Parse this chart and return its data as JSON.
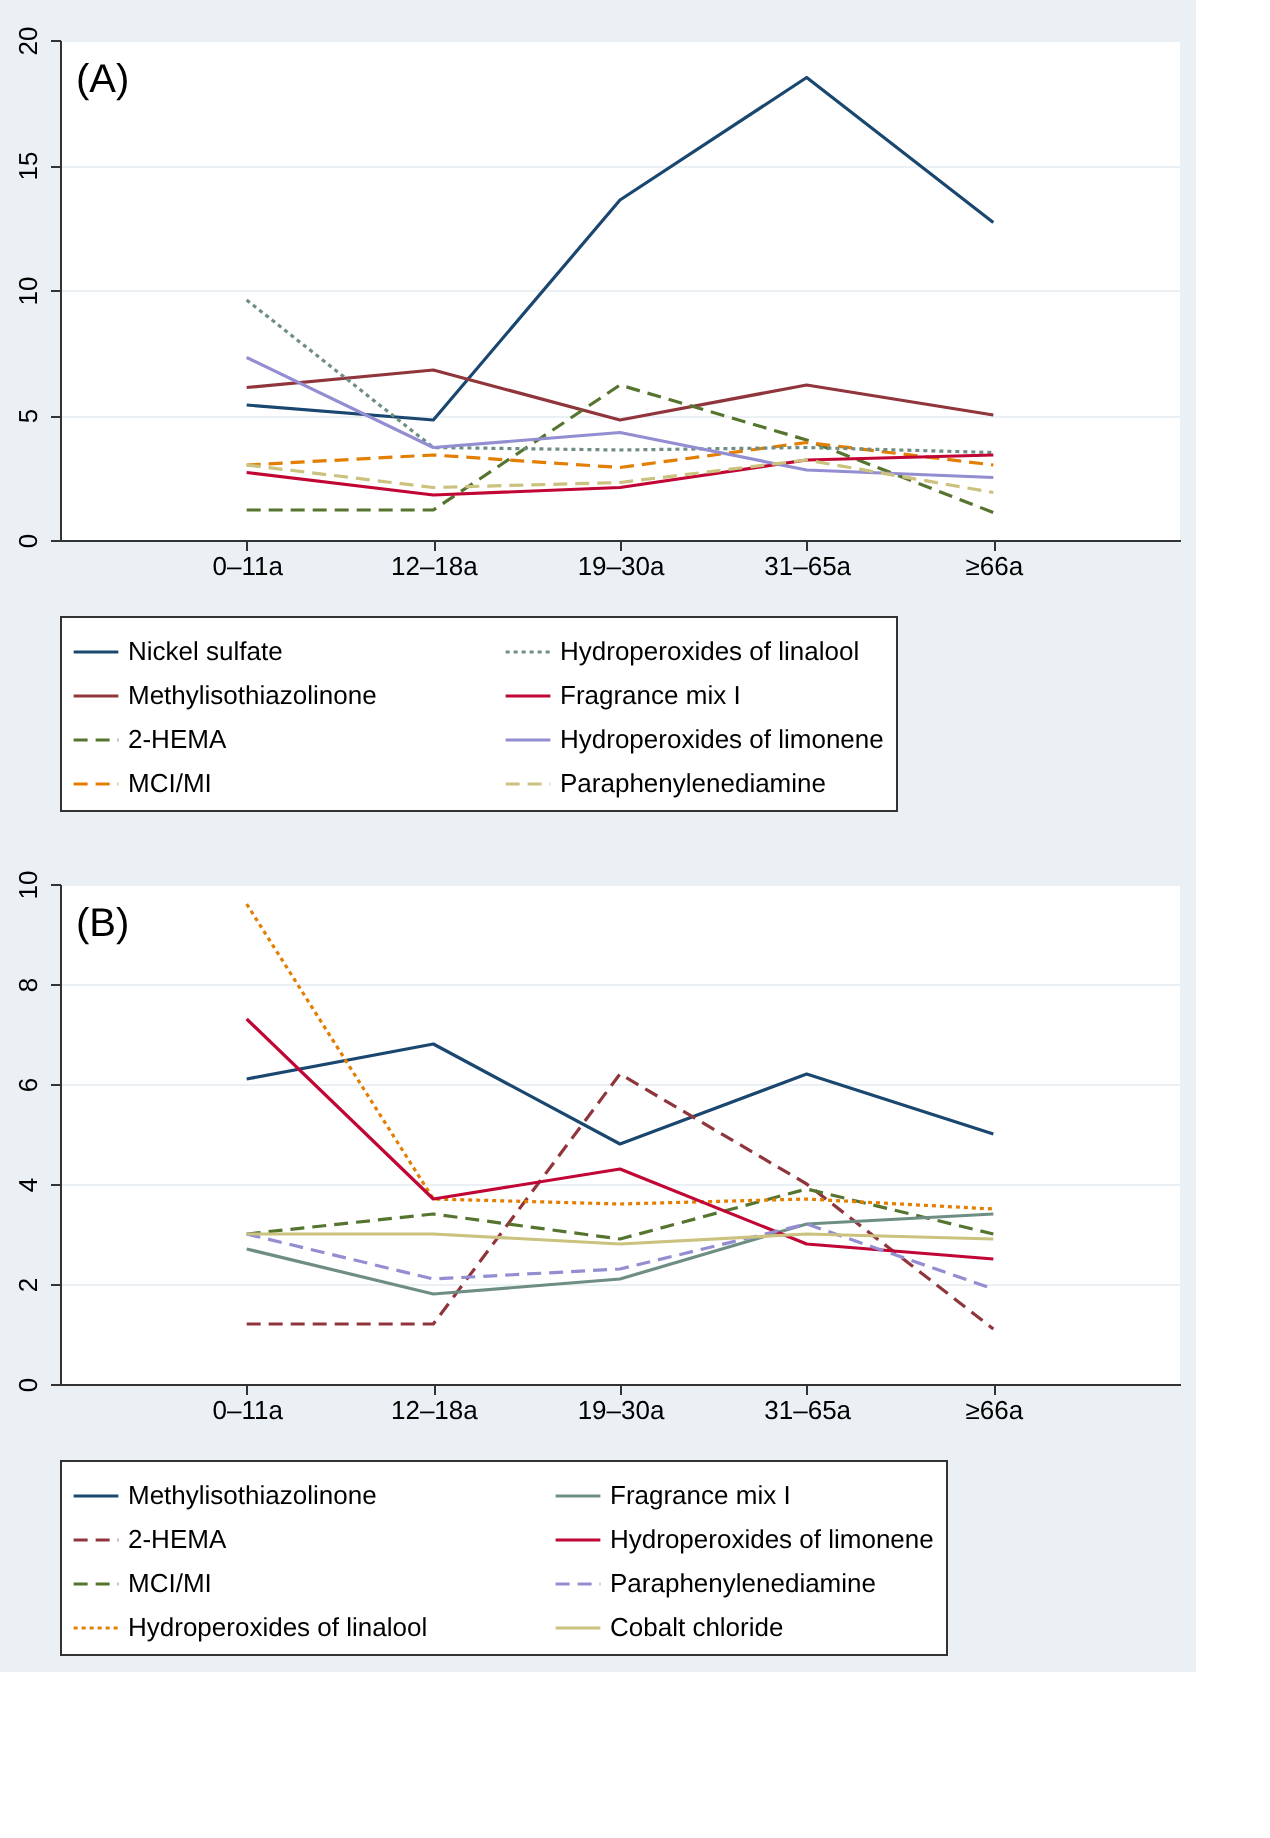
{
  "chart_data": [
    {
      "type": "line",
      "annotations": [
        "(A)"
      ],
      "categories": [
        "0–11a",
        "12–18a",
        "19–30a",
        "31–65a",
        "≥66a"
      ],
      "ylim": [
        0,
        20
      ],
      "yticks": [
        0,
        5,
        10,
        15,
        20
      ],
      "grid": "y",
      "legend": "bottom",
      "series": [
        {
          "name": "Nickel sulfate",
          "color": "#1a476f",
          "line_style": "solid",
          "values": [
            5.4,
            4.8,
            13.6,
            18.5,
            12.7
          ]
        },
        {
          "name": "Methylisothiazolinone",
          "color": "#90353b",
          "line_style": "solid",
          "values": [
            6.1,
            6.8,
            4.8,
            6.2,
            5.0
          ]
        },
        {
          "name": "2-HEMA",
          "color": "#55752f",
          "line_style": "dashed",
          "values": [
            1.2,
            1.2,
            6.2,
            4.0,
            1.1
          ]
        },
        {
          "name": "MCI/MI",
          "color": "#e37e00",
          "line_style": "dashed",
          "values": [
            3.0,
            3.4,
            2.9,
            3.9,
            3.0
          ]
        },
        {
          "name": "Hydroperoxides of linalool",
          "color": "#6e8e84",
          "line_style": "dotted",
          "values": [
            9.6,
            3.7,
            3.6,
            3.7,
            3.5
          ]
        },
        {
          "name": "Fragrance mix I",
          "color": "#c10534",
          "line_style": "solid",
          "values": [
            2.7,
            1.8,
            2.1,
            3.2,
            3.4
          ]
        },
        {
          "name": "Hydroperoxides of limonene",
          "color": "#938dd2",
          "line_style": "solid",
          "values": [
            7.3,
            3.7,
            4.3,
            2.8,
            2.5
          ]
        },
        {
          "name": "Paraphenylenediamine",
          "color": "#cac27e",
          "line_style": "dashed",
          "values": [
            3.0,
            2.1,
            2.3,
            3.2,
            1.9
          ]
        }
      ]
    },
    {
      "type": "line",
      "annotations": [
        "(B)"
      ],
      "categories": [
        "0–11a",
        "12–18a",
        "19–30a",
        "31–65a",
        "≥66a"
      ],
      "ylim": [
        0,
        10
      ],
      "yticks": [
        0,
        2,
        4,
        6,
        8,
        10
      ],
      "grid": "y",
      "legend": "bottom",
      "series": [
        {
          "name": "Methylisothiazolinone",
          "color": "#1a476f",
          "line_style": "solid",
          "values": [
            6.1,
            6.8,
            4.8,
            6.2,
            5.0
          ]
        },
        {
          "name": "2-HEMA",
          "color": "#90353b",
          "line_style": "dashed",
          "values": [
            1.2,
            1.2,
            6.2,
            4.0,
            1.1
          ]
        },
        {
          "name": "MCI/MI",
          "color": "#55752f",
          "line_style": "dashed",
          "values": [
            3.0,
            3.4,
            2.9,
            3.9,
            3.0
          ]
        },
        {
          "name": "Hydroperoxides of linalool",
          "color": "#e37e00",
          "line_style": "dotted",
          "values": [
            9.6,
            3.7,
            3.6,
            3.7,
            3.5
          ]
        },
        {
          "name": "Fragrance mix I",
          "color": "#6e8e84",
          "line_style": "solid",
          "values": [
            2.7,
            1.8,
            2.1,
            3.2,
            3.4
          ]
        },
        {
          "name": "Hydroperoxides of limonene",
          "color": "#c10534",
          "line_style": "solid",
          "values": [
            7.3,
            3.7,
            4.3,
            2.8,
            2.5
          ]
        },
        {
          "name": "Paraphenylenediamine",
          "color": "#938dd2",
          "line_style": "dashed",
          "values": [
            3.0,
            2.1,
            2.3,
            3.2,
            1.9
          ]
        },
        {
          "name": "Cobalt chloride",
          "color": "#cac27e",
          "line_style": "solid",
          "values": [
            3.0,
            3.0,
            2.8,
            3.0,
            2.9
          ]
        }
      ]
    }
  ]
}
